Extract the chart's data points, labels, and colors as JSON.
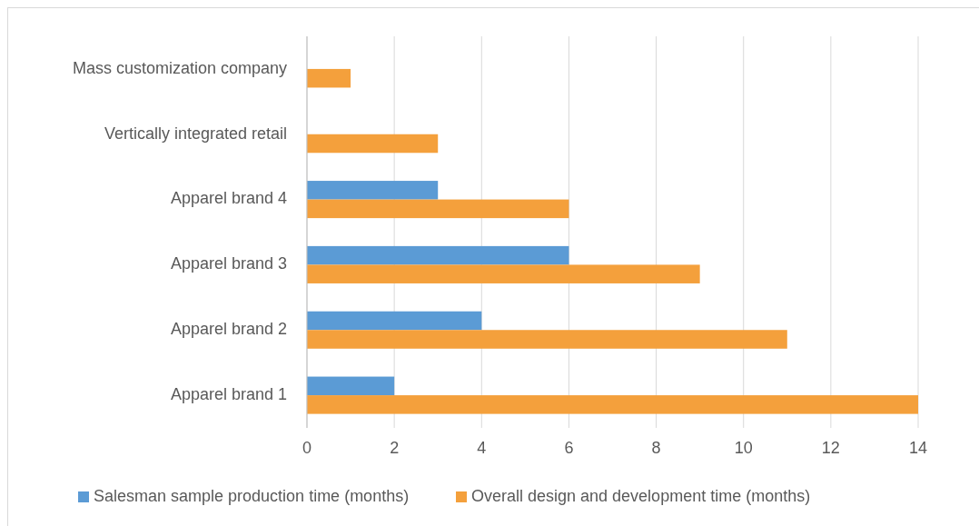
{
  "chart_data": {
    "type": "bar",
    "orientation": "horizontal",
    "categories": [
      "Mass customization company",
      "Vertically integrated retail",
      "Apparel brand 4",
      "Apparel brand 3",
      "Apparel brand 2",
      "Apparel brand 1"
    ],
    "series": [
      {
        "name": "Salesman sample production time (months)",
        "color": "#5b9bd5",
        "values": [
          null,
          null,
          3,
          6,
          4,
          2
        ]
      },
      {
        "name": "Overall design and development time (months)",
        "color": "#f4a03c",
        "values": [
          1,
          3,
          6,
          9,
          11,
          14
        ]
      }
    ],
    "xlim": [
      0,
      14
    ],
    "xticks": [
      0,
      2,
      4,
      6,
      8,
      10,
      12,
      14
    ],
    "grid": "x",
    "legend": "bottom"
  }
}
